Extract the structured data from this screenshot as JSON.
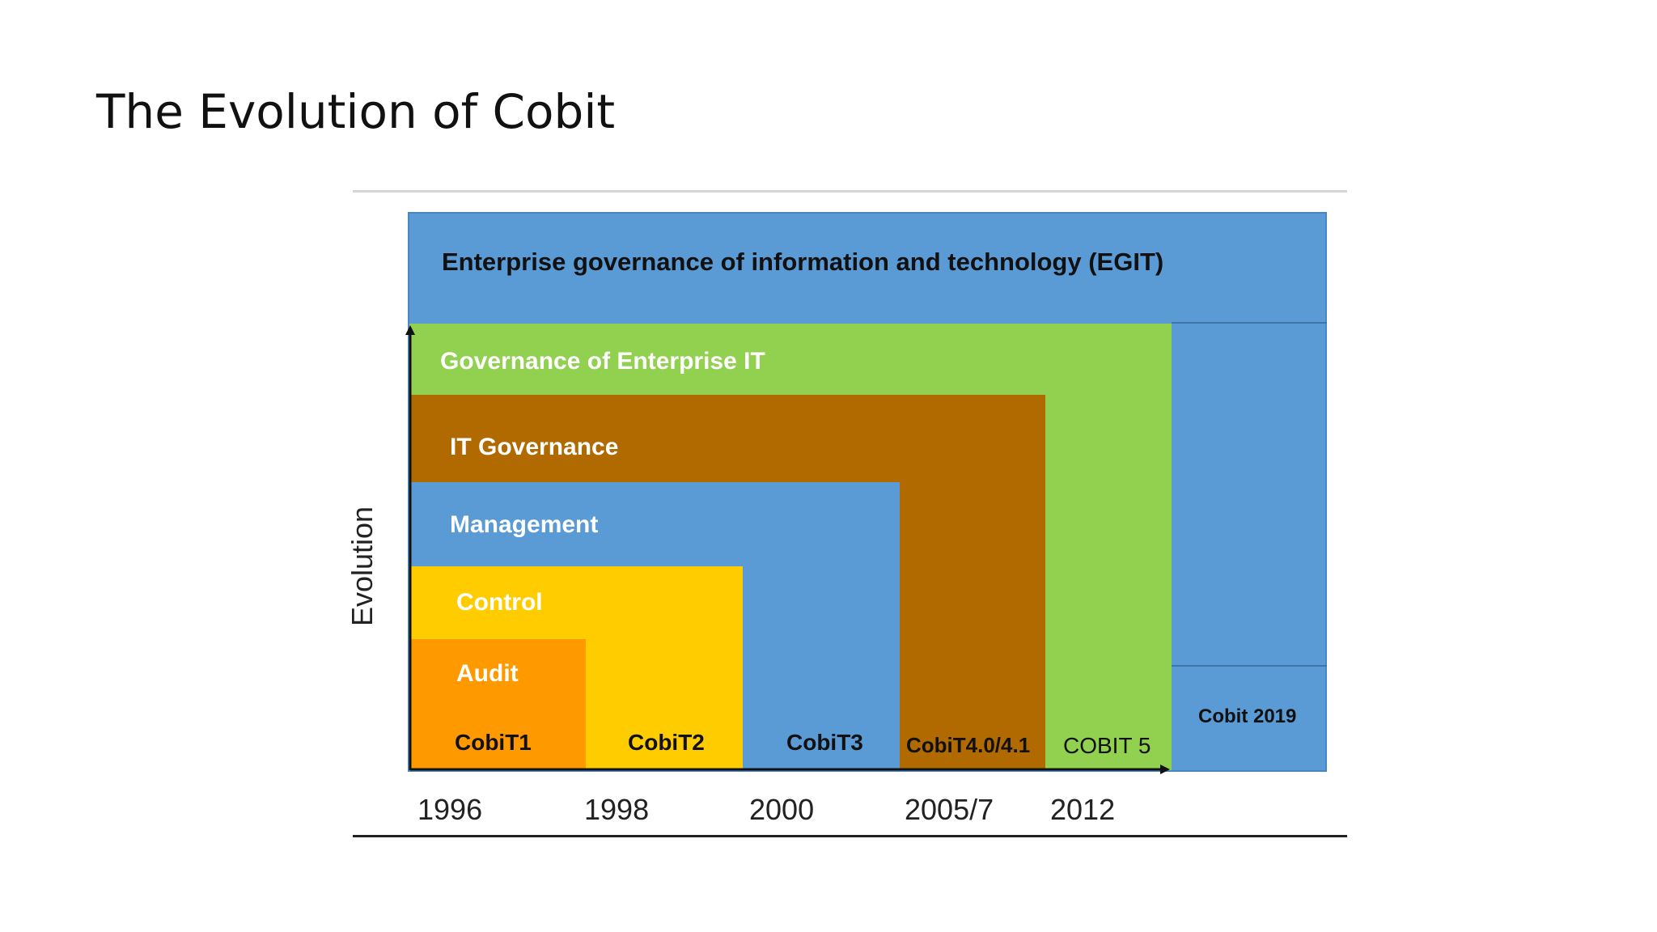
{
  "title": "The Evolution of Cobit",
  "axis_label": "Evolution",
  "layers": {
    "egit": "Enterprise governance of information and technology (EGIT)",
    "geit": "Governance of Enterprise IT",
    "it_governance": "IT Governance",
    "management": "Management",
    "control": "Control",
    "audit": "Audit"
  },
  "versions": {
    "cobit1": "CobiT1",
    "cobit2": "CobiT2",
    "cobit3": "CobiT3",
    "cobit4": "CobiT4.0/4.1",
    "cobit5": "COBIT 5",
    "cobit2019": "Cobit 2019"
  },
  "years": [
    "1996",
    "1998",
    "2000",
    "2005/7",
    "2012"
  ],
  "colors": {
    "blue": "#5b9bd5",
    "green": "#92d050",
    "brown": "#b06a00",
    "yellow": "#ffcc00",
    "orange": "#ff9900"
  }
}
